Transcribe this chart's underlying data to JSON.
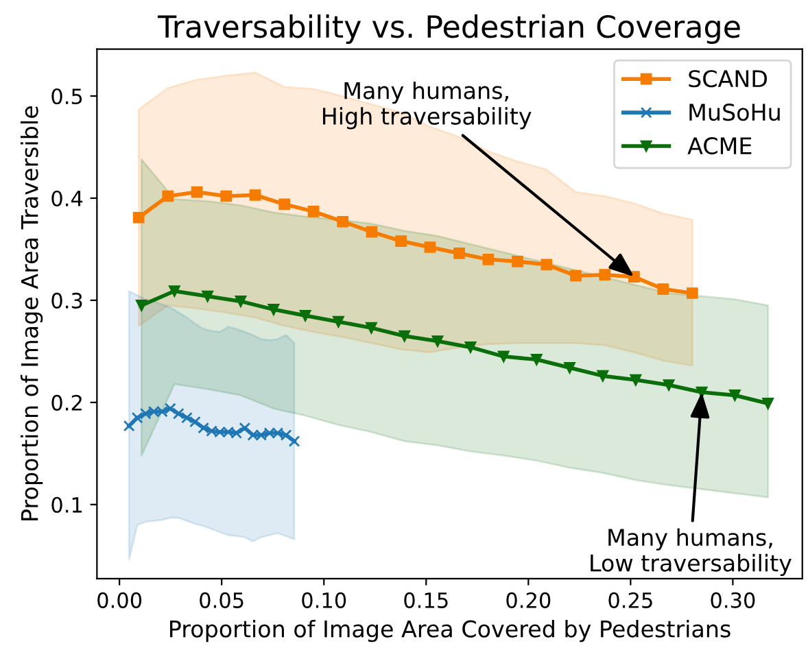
{
  "chart_data": {
    "type": "line",
    "title": "Traversability vs. Pedestrian Coverage",
    "xlabel": "Proportion of Image Area Covered by Pedestrians",
    "ylabel": "Proportion of Image Area Traversible",
    "xlim": [
      -0.011,
      0.334
    ],
    "ylim": [
      0.0275,
      0.546
    ],
    "xticks": [
      {
        "value": 0,
        "label": "0.00"
      },
      0.05,
      {
        "value": 0.1,
        "label": "0.10"
      },
      0.15,
      {
        "value": 0.2,
        "label": "0.20"
      },
      0.25,
      {
        "value": 0.3,
        "label": "0.30"
      }
    ],
    "yticks": [
      0.1,
      0.2,
      0.3,
      0.4,
      0.5
    ],
    "grid": false,
    "legend": "top right",
    "line_style": "solid",
    "series": [
      {
        "name": "SCAND",
        "color": "#f57c00",
        "marker": "square",
        "x": [
          0.0094,
          0.0237,
          0.0379,
          0.0522,
          0.0664,
          0.0807,
          0.0949,
          0.1092,
          0.1234,
          0.1377,
          0.1519,
          0.1662,
          0.1804,
          0.1947,
          0.2089,
          0.2232,
          0.2374,
          0.2517,
          0.2659,
          0.2802
        ],
        "values": [
          0.381,
          0.402,
          0.406,
          0.402,
          0.403,
          0.394,
          0.387,
          0.377,
          0.367,
          0.358,
          0.352,
          0.346,
          0.34,
          0.338,
          0.335,
          0.324,
          0.325,
          0.323,
          0.311,
          0.307
        ],
        "upper": [
          0.487,
          0.508,
          0.516,
          0.52,
          0.523,
          0.509,
          0.507,
          0.5,
          0.492,
          0.484,
          0.47,
          0.46,
          0.446,
          0.436,
          0.428,
          0.406,
          0.402,
          0.395,
          0.385,
          0.379
        ],
        "lower": [
          0.275,
          0.295,
          0.292,
          0.288,
          0.283,
          0.275,
          0.269,
          0.264,
          0.258,
          0.252,
          0.249,
          0.254,
          0.257,
          0.258,
          0.258,
          0.258,
          0.256,
          0.249,
          0.241,
          0.236
        ]
      },
      {
        "name": "MuSoHu",
        "color": "#1f77b4",
        "marker": "cross",
        "x": [
          0.0047,
          0.0087,
          0.0128,
          0.0168,
          0.0209,
          0.0249,
          0.0289,
          0.033,
          0.037,
          0.0411,
          0.0451,
          0.0491,
          0.0532,
          0.0572,
          0.0613,
          0.0653,
          0.0693,
          0.0734,
          0.0774,
          0.0815,
          0.0855
        ],
        "values": [
          0.177,
          0.185,
          0.189,
          0.191,
          0.191,
          0.194,
          0.189,
          0.185,
          0.181,
          0.175,
          0.172,
          0.171,
          0.171,
          0.17,
          0.175,
          0.168,
          0.168,
          0.17,
          0.17,
          0.168,
          0.162
        ],
        "upper": [
          0.309,
          0.305,
          0.301,
          0.299,
          0.296,
          0.293,
          0.288,
          0.283,
          0.277,
          0.272,
          0.27,
          0.269,
          0.274,
          0.272,
          0.269,
          0.266,
          0.262,
          0.261,
          0.262,
          0.266,
          0.258
        ],
        "lower": [
          0.046,
          0.08,
          0.083,
          0.084,
          0.085,
          0.087,
          0.087,
          0.084,
          0.081,
          0.079,
          0.076,
          0.073,
          0.07,
          0.069,
          0.068,
          0.064,
          0.068,
          0.07,
          0.072,
          0.069,
          0.066
        ]
      },
      {
        "name": "ACME",
        "color": "#0a6e0a",
        "marker": "triangle",
        "x": [
          0.0108,
          0.0269,
          0.0431,
          0.0593,
          0.0754,
          0.0909,
          0.1071,
          0.1232,
          0.1394,
          0.1556,
          0.1717,
          0.1879,
          0.204,
          0.2202,
          0.2364,
          0.2525,
          0.2687,
          0.2848,
          0.301,
          0.3172
        ],
        "values": [
          0.295,
          0.309,
          0.304,
          0.299,
          0.291,
          0.285,
          0.279,
          0.273,
          0.265,
          0.26,
          0.254,
          0.245,
          0.242,
          0.234,
          0.226,
          0.222,
          0.217,
          0.21,
          0.207,
          0.199
        ],
        "upper": [
          0.438,
          0.399,
          0.397,
          0.393,
          0.386,
          0.382,
          0.379,
          0.375,
          0.368,
          0.363,
          0.355,
          0.347,
          0.339,
          0.331,
          0.323,
          0.315,
          0.307,
          0.304,
          0.301,
          0.295
        ],
        "lower": [
          0.148,
          0.218,
          0.213,
          0.207,
          0.194,
          0.187,
          0.178,
          0.171,
          0.162,
          0.158,
          0.152,
          0.148,
          0.143,
          0.136,
          0.131,
          0.124,
          0.119,
          0.115,
          0.111,
          0.107
        ]
      }
    ],
    "annotations": [
      {
        "text": "Many humans,\nHigh traversability",
        "x": 0.2517,
        "y": 0.323
      },
      {
        "text": "Many humans,\nLow traversability",
        "x": 0.2848,
        "y": 0.21
      }
    ]
  }
}
